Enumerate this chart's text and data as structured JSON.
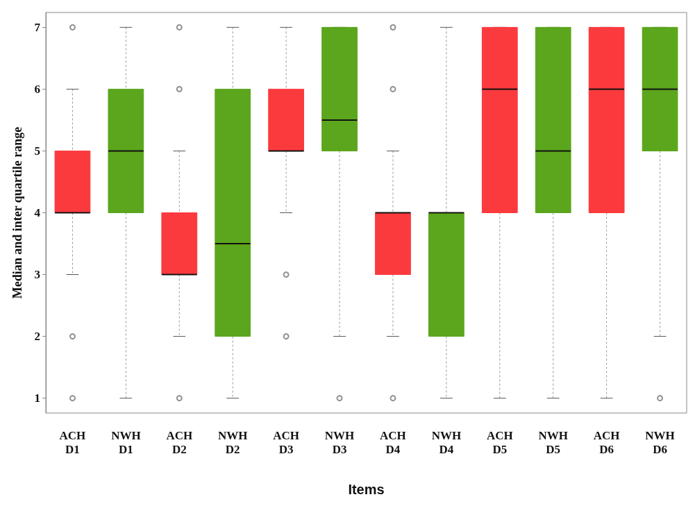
{
  "chart_data": {
    "type": "box",
    "xlabel": "Items",
    "ylabel": "Median and inter quartile range",
    "categories": [
      "ACH\nD1",
      "NWH\nD1",
      "ACH\nD2",
      "NWH\nD2",
      "ACH\nD3",
      "NWH\nD3",
      "ACH\nD4",
      "NWH\nD4",
      "ACH\nD5",
      "NWH\nD5",
      "ACH\nD6",
      "NWH\nD6"
    ],
    "colors": [
      "#fb3a3e",
      "#5ba61c",
      "#fb3a3e",
      "#5ba61c",
      "#fb3a3e",
      "#5ba61c",
      "#fb3a3e",
      "#5ba61c",
      "#fb3a3e",
      "#5ba61c",
      "#fb3a3e",
      "#5ba61c"
    ],
    "boxes": [
      {
        "low": 3,
        "q1": 4,
        "median": 4,
        "q3": 5,
        "high": 6,
        "outliers": [
          7,
          2,
          1
        ]
      },
      {
        "low": 1,
        "q1": 4,
        "median": 5,
        "q3": 6,
        "high": 7
      },
      {
        "low": 2,
        "q1": 3,
        "median": 3,
        "q3": 4,
        "high": 5,
        "outliers": [
          7,
          6,
          1
        ]
      },
      {
        "low": 1,
        "q1": 2,
        "median": 3.5,
        "q3": 6,
        "high": 7
      },
      {
        "low": 4,
        "q1": 5,
        "median": 5,
        "q3": 6,
        "high": 7,
        "outliers": [
          3,
          2
        ]
      },
      {
        "low": 2,
        "q1": 5,
        "median": 5.5,
        "q3": 7,
        "high": 7,
        "outliers": [
          1
        ]
      },
      {
        "low": 2,
        "q1": 3,
        "median": 4,
        "q3": 4,
        "high": 5,
        "outliers": [
          7,
          6,
          1
        ]
      },
      {
        "low": 1,
        "q1": 2,
        "median": 4,
        "q3": 4,
        "high": 7
      },
      {
        "low": 1,
        "q1": 4,
        "median": 6,
        "q3": 7,
        "high": 7
      },
      {
        "low": 1,
        "q1": 4,
        "median": 5,
        "q3": 7,
        "high": 7
      },
      {
        "low": 1,
        "q1": 4,
        "median": 6,
        "q3": 7,
        "high": 7
      },
      {
        "low": 2,
        "q1": 5,
        "median": 6,
        "q3": 7,
        "high": 7,
        "outliers": [
          1
        ]
      }
    ],
    "ylim": [
      0.76,
      7.24
    ],
    "yticks": [
      1,
      2,
      3,
      4,
      5,
      6,
      7
    ],
    "grid": false
  }
}
